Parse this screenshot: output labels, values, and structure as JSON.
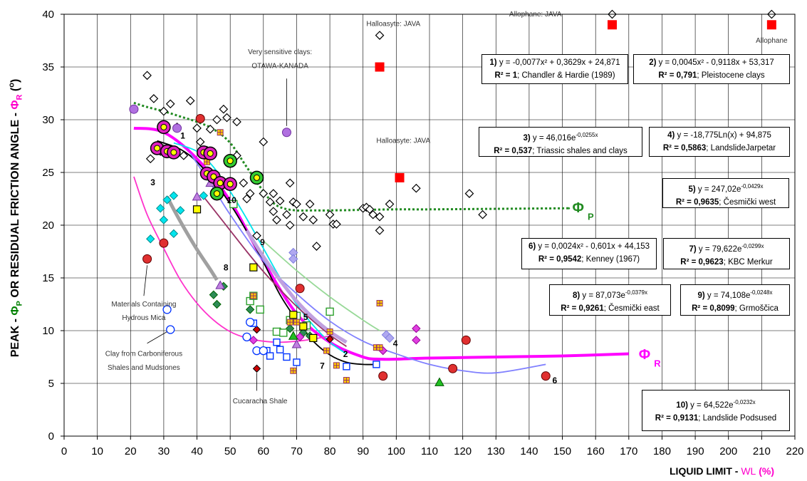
{
  "chart_data": {
    "type": "scatter",
    "xlabel": "LIQUID LIMIT - WL (%)",
    "xlabel_parts": {
      "main": "LIQUID LIMIT - ",
      "sym": "WL",
      "unit": " (%)"
    },
    "ylabel": "PEAK - ΦP OR RESIDUAL FRICTION ANGLE - ΦR (°)",
    "ylabel_parts": {
      "a": "PEAK - ",
      "p": "Φ",
      "psub": "P",
      "b": " OR RESIDUAL FRICTION ANGLE - ",
      "r": "Φ",
      "rsub": "R",
      "c": " (",
      "deg": "o",
      "d": ")"
    },
    "xlim": [
      0,
      220
    ],
    "ylim": [
      0,
      40
    ],
    "xticks": [
      "0",
      "10",
      "20",
      "30",
      "40",
      "50",
      "60",
      "70",
      "80",
      "90",
      "100",
      "110",
      "120",
      "130",
      "140",
      "150",
      "160",
      "170",
      "180",
      "190",
      "200",
      "210",
      "220"
    ],
    "yticks": [
      "0",
      "5",
      "10",
      "15",
      "20",
      "25",
      "30",
      "35",
      "40"
    ],
    "grid": true,
    "colors": {
      "phi_r": "#ff00ff",
      "phi_p": "#228b22",
      "red_marker": "#ff0000"
    },
    "curves": [
      {
        "id": "phi_p",
        "color": "#228b22",
        "dash": true,
        "x": [
          21,
          25,
          30,
          35,
          40,
          45,
          50,
          55,
          60,
          63,
          66,
          70,
          75,
          80,
          90,
          100,
          110,
          130,
          150,
          152
        ],
        "y": [
          31.6,
          31.2,
          30.8,
          30.3,
          29.8,
          29.1,
          27.8,
          25.5,
          23.2,
          22.1,
          21.6,
          21.4,
          21.4,
          21.4,
          21.45,
          21.5,
          21.5,
          21.55,
          21.6,
          21.6
        ]
      },
      {
        "id": "phi_r",
        "color": "#ff00ff",
        "dash": false,
        "x": [
          21,
          30,
          40,
          50,
          60,
          70,
          80,
          90,
          95,
          100,
          110,
          130,
          150,
          170
        ],
        "y": [
          29.2,
          28.8,
          26.3,
          22.3,
          16.6,
          11.6,
          8.9,
          7.5,
          7.3,
          7.3,
          7.4,
          7.5,
          7.6,
          7.8
        ]
      },
      {
        "id": "c1",
        "color": "#000000",
        "dash": false,
        "x": [
          28,
          35,
          40,
          45,
          50,
          55,
          60,
          65,
          70,
          75,
          80,
          85,
          90,
          95
        ],
        "y": [
          28,
          27.2,
          26,
          24.2,
          22,
          19.4,
          16.5,
          13.4,
          11,
          9,
          7.7,
          7,
          6.8,
          6.8
        ]
      },
      {
        "id": "c2",
        "color": "#00e5ee",
        "dash": false,
        "x": [
          33,
          40,
          45,
          50,
          55,
          60,
          65,
          70,
          75,
          80,
          85
        ],
        "y": [
          27.8,
          27,
          25.5,
          23.2,
          20.6,
          17.8,
          15,
          12.5,
          10.5,
          8.9,
          7.8
        ]
      },
      {
        "id": "c3",
        "color": "#ff33cc",
        "dash": false,
        "x": [
          21,
          25,
          30,
          35,
          40,
          45,
          50,
          55,
          60,
          65,
          70,
          75,
          80
        ],
        "y": [
          24.6,
          21,
          17.8,
          14.8,
          12.6,
          11,
          9.9,
          9.3,
          9,
          8.9,
          9,
          9.2,
          9.5
        ]
      },
      {
        "id": "c4",
        "color": "#8080ff",
        "dash": false,
        "x": [
          38,
          45,
          50,
          60,
          70,
          80,
          90,
          100,
          110,
          120,
          130,
          145
        ],
        "y": [
          26.8,
          23.5,
          21,
          16.6,
          13.5,
          10.9,
          9,
          7.8,
          6.8,
          6.2,
          6,
          6.8
        ]
      },
      {
        "id": "c5",
        "color": "#993366",
        "dash": false,
        "x": [
          42,
          45,
          50,
          55,
          60,
          65,
          70,
          75,
          80,
          85
        ],
        "y": [
          22.7,
          21.5,
          19.5,
          17.5,
          15.6,
          13.9,
          12.3,
          10.9,
          9.6,
          8.5
        ]
      },
      {
        "id": "c6",
        "color": "#98d998",
        "dash": false,
        "x": [
          60,
          70,
          80,
          90,
          95
        ],
        "y": [
          18.5,
          15.7,
          13.2,
          11,
          10
        ]
      },
      {
        "id": "c8",
        "color": "#a0a0a0",
        "dash": false,
        "thick": true,
        "x": [
          31,
          33,
          36,
          40,
          44,
          46
        ],
        "y": [
          22.7,
          21.5,
          19.8,
          17.7,
          15.8,
          14.8
        ]
      },
      {
        "id": "c9",
        "color": "#c0a0e0",
        "dash": false,
        "thick": true,
        "x": [
          55,
          60,
          65,
          70,
          75,
          80,
          85
        ],
        "y": [
          19.5,
          17,
          14.8,
          12.8,
          11.2,
          9.9,
          8.9
        ]
      }
    ],
    "diamonds": [
      [
        25,
        34.2
      ],
      [
        26,
        26.3
      ],
      [
        27,
        32
      ],
      [
        29,
        27
      ],
      [
        30,
        30.8
      ],
      [
        32,
        31.5
      ],
      [
        34,
        29.3
      ],
      [
        36,
        26.6
      ],
      [
        38,
        31.8
      ],
      [
        40,
        29.2
      ],
      [
        41,
        27.9
      ],
      [
        43,
        27.1
      ],
      [
        44,
        29.1
      ],
      [
        46,
        30
      ],
      [
        48,
        31
      ],
      [
        49,
        30.2
      ],
      [
        52,
        29.8
      ],
      [
        52,
        26.6
      ],
      [
        54,
        24
      ],
      [
        55,
        22.5
      ],
      [
        56,
        23
      ],
      [
        58,
        19
      ],
      [
        60,
        27.9
      ],
      [
        60,
        23
      ],
      [
        62,
        22.2
      ],
      [
        63,
        23
      ],
      [
        63,
        21.3
      ],
      [
        64,
        20.5
      ],
      [
        65,
        22.3
      ],
      [
        67,
        21
      ],
      [
        68,
        24
      ],
      [
        68,
        20
      ],
      [
        69,
        22.2
      ],
      [
        70,
        22
      ],
      [
        72,
        20.8
      ],
      [
        74,
        22
      ],
      [
        75,
        20.5
      ],
      [
        76,
        18
      ],
      [
        80,
        21
      ],
      [
        81,
        20.1
      ],
      [
        82,
        20.1
      ],
      [
        90,
        21.6
      ],
      [
        91,
        21.7
      ],
      [
        92,
        21.5
      ],
      [
        93,
        21
      ],
      [
        95,
        20.8
      ],
      [
        95,
        19.5
      ],
      [
        98,
        22
      ],
      [
        106,
        23.5
      ],
      [
        122,
        23
      ],
      [
        126,
        21
      ],
      [
        95,
        38
      ],
      [
        165,
        40
      ],
      [
        213,
        40
      ]
    ],
    "red_squares": [
      [
        95,
        35
      ],
      [
        101,
        24.5
      ],
      [
        165,
        39
      ],
      [
        213,
        39
      ]
    ],
    "blue_circles": [
      [
        31,
        12
      ],
      [
        32,
        10.1
      ],
      [
        55,
        9.4
      ],
      [
        58,
        8.1
      ],
      [
        60,
        8.1
      ],
      [
        56,
        10.8
      ]
    ],
    "red_circles": [
      [
        25,
        16.8
      ],
      [
        30,
        18.3
      ],
      [
        41,
        30.1
      ],
      [
        71,
        14
      ],
      [
        96,
        5.7
      ],
      [
        117,
        6.4
      ],
      [
        121,
        9.1
      ],
      [
        145,
        5.7
      ]
    ],
    "big_magenta_circles": [
      [
        28,
        27.3
      ],
      [
        30,
        29.3
      ],
      [
        31,
        27
      ],
      [
        33,
        26.9
      ],
      [
        42,
        26.9
      ],
      [
        43,
        24.9
      ],
      [
        44,
        26.8
      ],
      [
        45,
        24.6
      ],
      [
        46,
        23
      ],
      [
        47,
        24
      ],
      [
        50,
        23.9
      ]
    ],
    "big_green_circles": [
      [
        46,
        23
      ],
      [
        50,
        26.1
      ],
      [
        58,
        24.5
      ]
    ],
    "green_squares": [
      [
        51,
        22
      ],
      [
        56,
        12.8
      ],
      [
        57,
        13.3
      ],
      [
        59,
        12
      ],
      [
        64,
        9.9
      ],
      [
        66,
        9.8
      ],
      [
        68,
        11
      ],
      [
        70,
        11.4
      ],
      [
        73,
        10.5
      ],
      [
        80,
        11.8
      ]
    ],
    "blue_squares": [
      [
        57,
        10.7
      ],
      [
        61,
        8.1
      ],
      [
        62,
        7.6
      ],
      [
        64,
        8.9
      ],
      [
        65,
        8.2
      ],
      [
        67,
        7.5
      ],
      [
        70,
        7
      ],
      [
        75,
        9.3
      ],
      [
        85,
        6.6
      ],
      [
        94,
        6.8
      ]
    ],
    "yellow_squares": [
      [
        40,
        21.5
      ],
      [
        57,
        16
      ],
      [
        69,
        11.5
      ],
      [
        72,
        10.4
      ],
      [
        75,
        9.3
      ]
    ],
    "cyan_diamonds": [
      [
        26,
        18.7
      ],
      [
        29,
        21.6
      ],
      [
        30,
        20.5
      ],
      [
        31,
        22.4
      ],
      [
        33,
        22.8
      ],
      [
        33,
        19.2
      ],
      [
        35,
        21.4
      ],
      [
        42,
        22.8
      ]
    ],
    "teal_diamonds": [
      [
        45,
        13.4
      ],
      [
        46,
        12.5
      ],
      [
        48,
        14.2
      ],
      [
        56,
        12
      ],
      [
        65,
        9.9
      ],
      [
        68,
        10.2
      ],
      [
        72,
        9.8
      ],
      [
        74,
        9.5
      ]
    ],
    "magenta_diamonds": [
      [
        57,
        9.1
      ],
      [
        71,
        9.4
      ],
      [
        96,
        8.1
      ],
      [
        106,
        10.2
      ],
      [
        106,
        9.1
      ]
    ],
    "lavender_diamonds": [
      [
        69,
        17.4
      ],
      [
        69,
        16.8
      ],
      [
        97,
        9.6
      ],
      [
        98,
        9.3
      ]
    ],
    "purple_circles": [
      [
        21,
        31
      ],
      [
        34,
        29.2
      ],
      [
        67,
        28.8
      ]
    ],
    "triangles_purple": [
      [
        40,
        22.7
      ],
      [
        44,
        24
      ],
      [
        47,
        14.3
      ],
      [
        70,
        8.7
      ]
    ],
    "triangles_green": [
      [
        69,
        9.5
      ],
      [
        113,
        5.1
      ]
    ],
    "red_diamonds": [
      [
        58,
        6.4
      ],
      [
        58,
        10.1
      ],
      [
        80,
        9.2
      ]
    ],
    "cross_squares": [
      [
        43,
        26
      ],
      [
        47,
        28.8
      ],
      [
        57,
        13.3
      ],
      [
        69,
        6.2
      ],
      [
        79,
        8.1
      ],
      [
        80,
        9.9
      ],
      [
        82,
        6.7
      ],
      [
        85,
        5.3
      ],
      [
        94,
        8.4
      ],
      [
        95,
        12.6
      ],
      [
        95,
        8.4
      ],
      [
        68,
        10.8
      ],
      [
        70,
        10.8
      ]
    ],
    "equations": [
      {
        "num": "1)",
        "eq": " y = -0,0077x² + 0,3629x + 24,871",
        "r2": "R² = 1",
        "src": "; Chandler & Hardie (1989)"
      },
      {
        "num": "2)",
        "eq": " y = 0,0045x² - 0,9118x + 53,317",
        "r2": "R² = 0,791",
        "src": "; Pleistocene clays"
      },
      {
        "num": "3)",
        "eq": " y = 46,016e^-0,0255x",
        "r2": "R² = 0,537",
        "src": "; Triassic shales and clays"
      },
      {
        "num": "4)",
        "eq": " y = -18,775Ln(x) + 94,875",
        "r2": "R² = 0,5863",
        "src": "; LandslideJarpetar"
      },
      {
        "num": "5)",
        "eq": " y = 247,02e^-0,0429x",
        "r2": "R² = 0,9635",
        "src": "; Česmički west"
      },
      {
        "num": "6)",
        "eq": " y = 0,0024x² - 0,601x + 44,153",
        "r2": "R² = 0,9542",
        "src": "; Kenney (1967)"
      },
      {
        "num": "7)",
        "eq": " y = 79,622e^-0,0299x",
        "r2": "R² = 0,9623",
        "src": "; KBC Merkur"
      },
      {
        "num": "8)",
        "eq": " y = 87,073e^-0,0379x",
        "r2": "R² = 0,9261",
        "src": "; Česmički east"
      },
      {
        "num": "9)",
        "eq": " y = 74,108e^-0,0248x",
        "r2": "R² = 0,8099",
        "src": "; Grmoščica"
      },
      {
        "num": "10)",
        "eq": " y = 64,522e^-0,0232x",
        "r2": "R² = 0,9131",
        "src": "; Landslide Podsused"
      }
    ],
    "annotations": {
      "halloasyte1": "Halloasyte: JAVA",
      "halloasyte2": "Halloasyte: JAVA",
      "allophane1": "Allophane: JAVA",
      "allophane2": "Allophane",
      "sensitive1": "Very sensitive clays:",
      "sensitive2": "OTAWA-KANADA",
      "mica1": "Materials Containing",
      "mica2": "Hydrous Mica",
      "carb1": "Clay from Carboniferous",
      "carb2": "Shales and Mudstones",
      "cucaracha": "Cucaracha Shale",
      "phi_p_label": "Φ",
      "phi_p_sub": "P",
      "phi_r_label": "Φ",
      "phi_r_sub": "R"
    },
    "curve_numbers": [
      {
        "label": "1",
        "x": 35,
        "y": 28.2
      },
      {
        "label": "2",
        "x": 84,
        "y": 7.5
      },
      {
        "label": "3",
        "x": 26,
        "y": 23.8
      },
      {
        "label": "4",
        "x": 99,
        "y": 8.5
      },
      {
        "label": "5",
        "x": 72,
        "y": 11
      },
      {
        "label": "6",
        "x": 147,
        "y": 5
      },
      {
        "label": "7",
        "x": 77,
        "y": 6.4
      },
      {
        "label": "8",
        "x": 48,
        "y": 15.7
      },
      {
        "label": "9",
        "x": 59,
        "y": 18.1
      },
      {
        "label": "10",
        "x": 49,
        "y": 22.1
      }
    ]
  }
}
